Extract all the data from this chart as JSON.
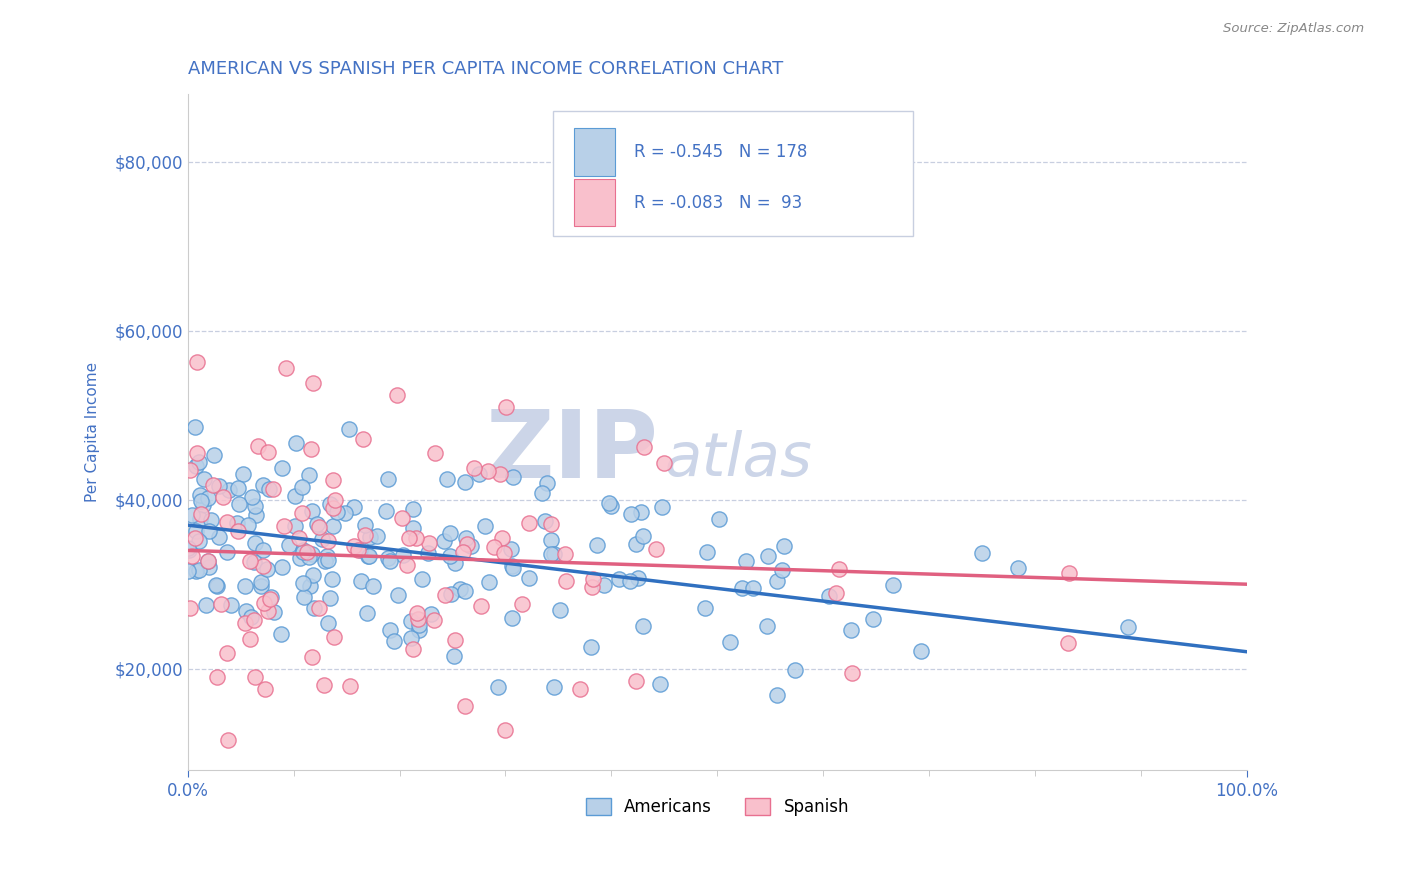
{
  "title": "AMERICAN VS SPANISH PER CAPITA INCOME CORRELATION CHART",
  "source_text": "Source: ZipAtlas.com",
  "ylabel": "Per Capita Income",
  "xlim": [
    0.0,
    1.0
  ],
  "ylim": [
    8000,
    88000
  ],
  "xtick_labels": [
    "0.0%",
    "100.0%"
  ],
  "ytick_values": [
    20000,
    40000,
    60000,
    80000
  ],
  "xtick_values": [
    0.0,
    1.0
  ],
  "americans_fill_color": "#b8d0e8",
  "americans_edge_color": "#5b9bd5",
  "spanish_fill_color": "#f9c0cc",
  "spanish_edge_color": "#e87090",
  "americans_line_color": "#3070c0",
  "spanish_line_color": "#e06080",
  "R_americans": -0.545,
  "N_americans": 178,
  "R_spanish": -0.083,
  "N_spanish": 93,
  "title_color": "#4472c4",
  "axis_label_color": "#4472c4",
  "tick_label_color": "#4472c4",
  "watermark_zip": "ZIP",
  "watermark_atlas": "atlas",
  "watermark_color": "#ccd5e8",
  "background_color": "#ffffff",
  "grid_color": "#c8cfe0",
  "legend_label_americans": "Americans",
  "legend_label_spanish": "Spanish",
  "seed": 7,
  "am_intercept": 37000,
  "am_slope": -15000,
  "sp_intercept": 34000,
  "sp_slope": -4000
}
